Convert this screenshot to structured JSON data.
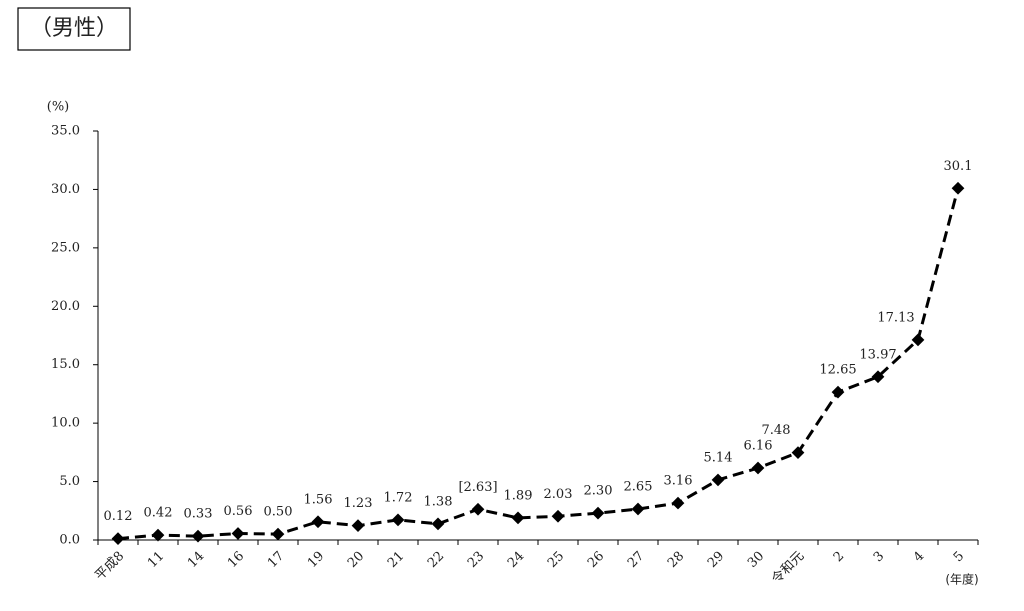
{
  "chart_data": {
    "type": "line",
    "title": "（男性）",
    "y_axis_label": "(%)",
    "x_axis_label": "(年度)",
    "categories": [
      "平成8",
      "11",
      "14",
      "16",
      "17",
      "19",
      "20",
      "21",
      "22",
      "23",
      "24",
      "25",
      "26",
      "27",
      "28",
      "29",
      "30",
      "令和元",
      "2",
      "3",
      "4",
      "5"
    ],
    "values": [
      0.12,
      0.42,
      0.33,
      0.56,
      0.5,
      1.56,
      1.23,
      1.72,
      1.38,
      2.63,
      1.89,
      2.03,
      2.3,
      2.65,
      3.16,
      5.14,
      6.16,
      7.48,
      12.65,
      13.97,
      17.13,
      30.1
    ],
    "value_labels": [
      "0.12",
      "0.42",
      "0.33",
      "0.56",
      "0.50",
      "1.56",
      "1.23",
      "1.72",
      "1.38",
      "[2.63]",
      "1.89",
      "2.03",
      "2.30",
      "2.65",
      "3.16",
      "5.14",
      "6.16",
      "7.48",
      "12.65",
      "13.97",
      "17.13",
      "30.1"
    ],
    "color": "#000000",
    "ylim": [
      0,
      35
    ],
    "yticks": [
      {
        "value": 0,
        "label": "0.0"
      },
      {
        "value": 5,
        "label": "5.0"
      },
      {
        "value": 10,
        "label": "10.0"
      },
      {
        "value": 15,
        "label": "15.0"
      },
      {
        "value": 20,
        "label": "20.0"
      },
      {
        "value": 25,
        "label": "25.0"
      },
      {
        "value": 30,
        "label": "30.0"
      },
      {
        "value": 35,
        "label": "35.0"
      }
    ],
    "grid": false
  }
}
